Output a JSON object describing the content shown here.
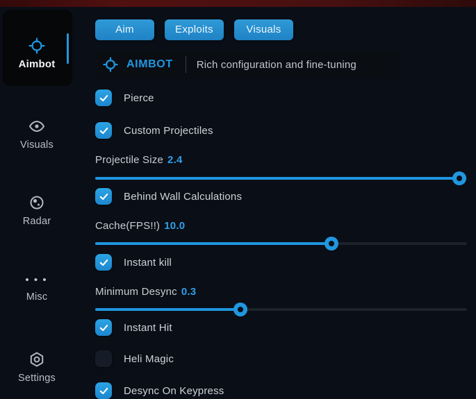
{
  "theme": {
    "accent": "#2196df",
    "page_bg": "#0a0e16",
    "top_strip": "#4a0e0e",
    "panel_bg": "#0a0d12",
    "track_bg": "#1d232b",
    "label_color": "#ced3d9",
    "value_color": "#2f9fe8"
  },
  "sidebar": {
    "items": [
      {
        "label": "Aimbot",
        "icon": "crosshair-icon",
        "active": true
      },
      {
        "label": "Visuals",
        "icon": "eye-icon",
        "active": false
      },
      {
        "label": "Radar",
        "icon": "radar-icon",
        "active": false
      },
      {
        "label": "Misc",
        "icon": "ellipsis-icon",
        "active": false
      },
      {
        "label": "Settings",
        "icon": "gear-icon",
        "active": false
      }
    ]
  },
  "tabs": [
    {
      "label": "Aim"
    },
    {
      "label": "Exploits"
    },
    {
      "label": "Visuals"
    }
  ],
  "header": {
    "title": "AIMBOT",
    "subtitle": "Rich configuration and fine-tuning"
  },
  "controls": [
    {
      "type": "checkbox",
      "label": "Pierce",
      "checked": true
    },
    {
      "type": "checkbox",
      "label": "Custom Projectiles",
      "checked": true
    },
    {
      "type": "slider",
      "label": "Projectile Size",
      "value": "2.4",
      "percent": 98
    },
    {
      "type": "checkbox",
      "label": "Behind Wall Calculations",
      "checked": true
    },
    {
      "type": "slider",
      "label": "Cache(FPS!!)",
      "value": "10.0",
      "percent": 63.5
    },
    {
      "type": "checkbox",
      "label": "Instant kill",
      "checked": true
    },
    {
      "type": "slider",
      "label": "Minimum Desync",
      "value": "0.3",
      "percent": 39
    },
    {
      "type": "checkbox",
      "label": "Instant Hit",
      "checked": true
    },
    {
      "type": "checkbox",
      "label": "Heli Magic",
      "checked": false
    },
    {
      "type": "checkbox",
      "label": "Desync On Keypress",
      "checked": true
    }
  ]
}
